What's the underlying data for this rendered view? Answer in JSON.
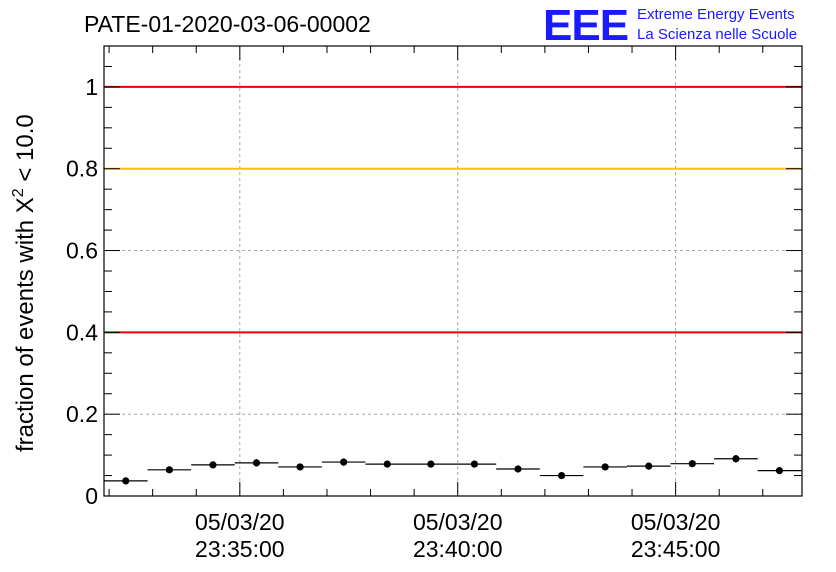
{
  "chart_data": {
    "type": "scatter",
    "title": "PATE-01-2020-03-06-00002",
    "ylabel": "fraction of events with X² < 10.0",
    "ylabel_parts": {
      "main": "fraction of events with X",
      "sup": "2",
      "rest": " < 10.0"
    },
    "xlabel": "",
    "ylim": [
      0,
      1.1
    ],
    "y_ticks": [
      0,
      0.2,
      0.4,
      0.6,
      0.8,
      1
    ],
    "y_tick_labels": [
      "0",
      "0.2",
      "0.4",
      "0.6",
      "0.8",
      "1"
    ],
    "x_tick_labels": [
      {
        "time": "23:35:00",
        "date": "05/03/20"
      },
      {
        "time": "23:40:00",
        "date": "05/03/20"
      },
      {
        "time": "23:45:00",
        "date": "05/03/20"
      }
    ],
    "xlim": [
      "23:31:53",
      "23:47:54"
    ],
    "grid": true,
    "reference_lines": [
      {
        "y": 1.0,
        "color": "#e8000b"
      },
      {
        "y": 0.8,
        "color": "#ffc000"
      },
      {
        "y": 0.4,
        "color": "#e8000b"
      }
    ],
    "series": [
      {
        "marker_color": "#000000",
        "bin_width_s": 60,
        "points": [
          {
            "x": "23:32:23",
            "y": 0.037,
            "err": 0.006
          },
          {
            "x": "23:33:23",
            "y": 0.064,
            "err": 0.007
          },
          {
            "x": "23:34:23",
            "y": 0.076,
            "err": 0.008
          },
          {
            "x": "23:35:23",
            "y": 0.081,
            "err": 0.009
          },
          {
            "x": "23:36:23",
            "y": 0.071,
            "err": 0.008
          },
          {
            "x": "23:37:23",
            "y": 0.083,
            "err": 0.009
          },
          {
            "x": "23:38:23",
            "y": 0.078,
            "err": 0.008
          },
          {
            "x": "23:39:23",
            "y": 0.078,
            "err": 0.008
          },
          {
            "x": "23:40:23",
            "y": 0.078,
            "err": 0.008
          },
          {
            "x": "23:41:23",
            "y": 0.066,
            "err": 0.008
          },
          {
            "x": "23:42:23",
            "y": 0.05,
            "err": 0.007
          },
          {
            "x": "23:43:23",
            "y": 0.071,
            "err": 0.008
          },
          {
            "x": "23:44:23",
            "y": 0.073,
            "err": 0.008
          },
          {
            "x": "23:45:23",
            "y": 0.079,
            "err": 0.008
          },
          {
            "x": "23:46:23",
            "y": 0.091,
            "err": 0.009
          },
          {
            "x": "23:47:23",
            "y": 0.062,
            "err": 0.008
          }
        ]
      }
    ]
  },
  "logo": {
    "letters": "EEE",
    "line1": "Extreme Energy Events",
    "line2": "La Scienza nelle Scuole"
  }
}
